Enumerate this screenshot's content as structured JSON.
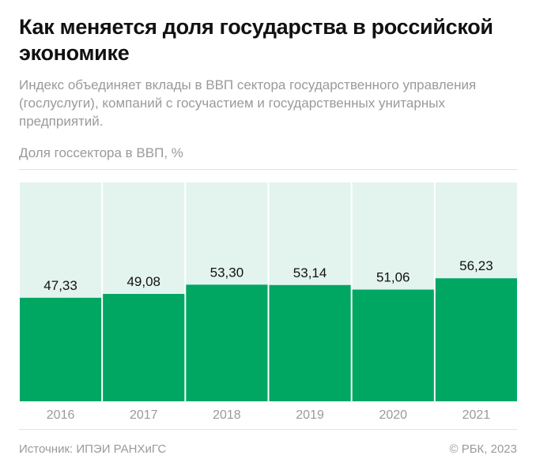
{
  "title": "Как меняется доля государства в российской экономике",
  "subtitle": "Индекс объединяет вклады в ВВП сектора государственного управления (гослуслуги), компаний с госучастием и государственных унитарных предприятий.",
  "footer": {
    "source": "Источник: ИПЭИ РАНХиГС",
    "copyright": "© РБК, 2023"
  },
  "chart_data": {
    "type": "bar",
    "title": "Как меняется доля государства в российской экономике",
    "ylabel": "Доля госсектора в ВВП, %",
    "categories": [
      "2016",
      "2017",
      "2018",
      "2019",
      "2020",
      "2021"
    ],
    "values": [
      47.33,
      49.08,
      53.3,
      53.14,
      51.06,
      56.23
    ],
    "value_labels": [
      "47,33",
      "49,08",
      "53,30",
      "53,14",
      "51,06",
      "56,23"
    ],
    "ylim": [
      0,
      100
    ],
    "grid": false,
    "colors": {
      "bar": "#00a763",
      "background": "#e3f4ee"
    }
  }
}
